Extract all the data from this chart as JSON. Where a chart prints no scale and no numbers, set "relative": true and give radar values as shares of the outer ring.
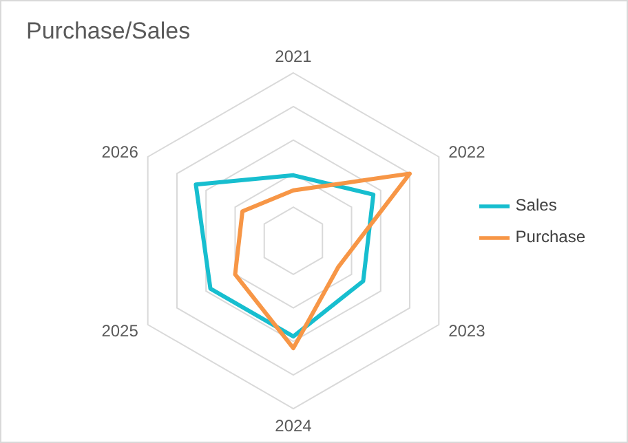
{
  "chart_data": {
    "type": "radar",
    "title": "Purchase/Sales",
    "relative": true,
    "categories": [
      "2021",
      "2022",
      "2023",
      "2024",
      "2025",
      "2026"
    ],
    "series": [
      {
        "name": "Sales",
        "color": "#17becf",
        "values": [
          0.39,
          0.55,
          0.48,
          0.57,
          0.57,
          0.67
        ]
      },
      {
        "name": "Purchase",
        "color": "#f79646",
        "values": [
          0.3,
          0.8,
          0.31,
          0.64,
          0.4,
          0.35
        ]
      }
    ],
    "grid": true,
    "legend": "right",
    "marker": "none"
  }
}
